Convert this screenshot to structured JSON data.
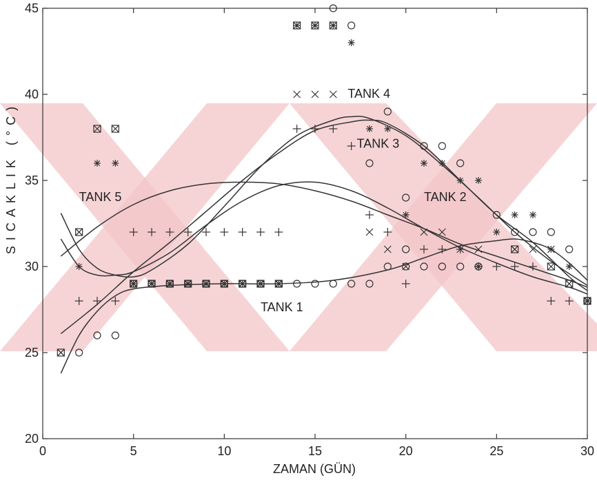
{
  "chart_data": {
    "type": "scatter",
    "xlabel": "ZAMAN (GÜN)",
    "ylabel": "SICAKLIK (°C)",
    "xlim": [
      0,
      30
    ],
    "ylim": [
      20,
      45
    ],
    "xticks": [
      0,
      5,
      10,
      15,
      20,
      25,
      30
    ],
    "yticks": [
      20,
      25,
      30,
      35,
      40,
      45
    ],
    "grid": false,
    "watermark_color": "#f3c6c8",
    "annotations": [
      {
        "text": "TANK 1",
        "x": 12,
        "y": 27.4
      },
      {
        "text": "TANK 2",
        "x": 21,
        "y": 33.8
      },
      {
        "text": "TANK 3",
        "x": 17.3,
        "y": 36.9
      },
      {
        "text": "TANK 4",
        "x": 16.8,
        "y": 39.8
      },
      {
        "text": "TANK 5",
        "x": 2,
        "y": 33.8
      }
    ],
    "series": [
      {
        "name": "TANK 1",
        "marker": "circle",
        "points": [
          [
            2,
            25
          ],
          [
            3,
            26
          ],
          [
            4,
            26
          ],
          [
            5,
            29
          ],
          [
            6,
            29
          ],
          [
            7,
            29
          ],
          [
            8,
            29
          ],
          [
            9,
            29
          ],
          [
            10,
            29
          ],
          [
            11,
            29
          ],
          [
            12,
            29
          ],
          [
            13,
            29
          ],
          [
            14,
            29
          ],
          [
            15,
            29
          ],
          [
            16,
            29
          ],
          [
            17,
            29
          ],
          [
            18,
            29
          ],
          [
            19,
            30
          ],
          [
            20,
            30
          ],
          [
            21,
            30
          ],
          [
            22,
            30
          ],
          [
            23,
            30
          ],
          [
            24,
            30
          ],
          [
            25,
            33
          ],
          [
            26,
            32
          ],
          [
            27,
            32
          ],
          [
            28,
            32
          ],
          [
            29,
            31
          ],
          [
            20,
            31
          ],
          [
            20,
            34
          ],
          [
            18,
            36
          ],
          [
            19,
            39
          ],
          [
            21,
            37
          ],
          [
            22,
            37
          ],
          [
            23,
            36
          ],
          [
            16,
            45
          ],
          [
            17,
            44
          ],
          [
            30,
            28
          ]
        ],
        "curve": [
          [
            1,
            23.8
          ],
          [
            2,
            26.0
          ],
          [
            3,
            27.4
          ],
          [
            4,
            28.3
          ],
          [
            5,
            28.7
          ],
          [
            7,
            28.9
          ],
          [
            10,
            29.0
          ],
          [
            13,
            29.0
          ],
          [
            16,
            29.2
          ],
          [
            19,
            29.8
          ],
          [
            21,
            30.5
          ],
          [
            23,
            31.2
          ],
          [
            25,
            31.5
          ],
          [
            26,
            31.6
          ],
          [
            27,
            31.4
          ],
          [
            28,
            31.0
          ],
          [
            29,
            30.2
          ],
          [
            30,
            29.2
          ]
        ]
      },
      {
        "name": "TANK 2",
        "marker": "plus",
        "points": [
          [
            2,
            28
          ],
          [
            3,
            28
          ],
          [
            4,
            28
          ],
          [
            5,
            32
          ],
          [
            6,
            32
          ],
          [
            7,
            32
          ],
          [
            8,
            32
          ],
          [
            9,
            32
          ],
          [
            10,
            32
          ],
          [
            11,
            32
          ],
          [
            12,
            32
          ],
          [
            13,
            32
          ],
          [
            14,
            38
          ],
          [
            15,
            38
          ],
          [
            16,
            38
          ],
          [
            17,
            37
          ],
          [
            18,
            33
          ],
          [
            19,
            32
          ],
          [
            20,
            29
          ],
          [
            21,
            31
          ],
          [
            22,
            31
          ],
          [
            23,
            31
          ],
          [
            24,
            30
          ],
          [
            25,
            30
          ],
          [
            26,
            30
          ],
          [
            27,
            30
          ],
          [
            28,
            28
          ],
          [
            29,
            28
          ],
          [
            30,
            28
          ]
        ],
        "curve": [
          [
            1,
            30.6
          ],
          [
            3,
            32.3
          ],
          [
            5,
            33.6
          ],
          [
            7,
            34.4
          ],
          [
            9,
            34.8
          ],
          [
            11,
            34.9
          ],
          [
            13,
            34.8
          ],
          [
            15,
            34.4
          ],
          [
            17,
            33.8
          ],
          [
            19,
            33.0
          ],
          [
            21,
            32.2
          ],
          [
            23,
            31.3
          ],
          [
            25,
            30.6
          ],
          [
            27,
            29.9
          ],
          [
            29,
            29.2
          ],
          [
            30,
            28.8
          ]
        ]
      },
      {
        "name": "TANK 3",
        "marker": "asterisk",
        "points": [
          [
            2,
            30
          ],
          [
            3,
            36
          ],
          [
            4,
            36
          ],
          [
            5,
            29
          ],
          [
            6,
            29
          ],
          [
            7,
            29
          ],
          [
            8,
            29
          ],
          [
            9,
            29
          ],
          [
            10,
            29
          ],
          [
            11,
            29
          ],
          [
            12,
            29
          ],
          [
            13,
            29
          ],
          [
            14,
            44
          ],
          [
            15,
            44
          ],
          [
            16,
            44
          ],
          [
            17,
            43
          ],
          [
            18,
            38
          ],
          [
            19,
            38
          ],
          [
            20,
            33
          ],
          [
            21,
            36
          ],
          [
            22,
            36
          ],
          [
            23,
            35
          ],
          [
            24,
            35
          ],
          [
            25,
            32
          ],
          [
            26,
            33
          ],
          [
            27,
            33
          ],
          [
            28,
            31
          ],
          [
            29,
            30
          ],
          [
            24,
            30
          ],
          [
            30,
            28
          ]
        ],
        "curve": [
          [
            1,
            26.1
          ],
          [
            3,
            27.8
          ],
          [
            5,
            29.7
          ],
          [
            7,
            31.4
          ],
          [
            9,
            33.2
          ],
          [
            11,
            35.0
          ],
          [
            13,
            36.6
          ],
          [
            15,
            37.9
          ],
          [
            17,
            38.4
          ],
          [
            18,
            38.5
          ],
          [
            19,
            38.3
          ],
          [
            21,
            37.0
          ],
          [
            23,
            35.0
          ],
          [
            25,
            33.0
          ],
          [
            27,
            31.4
          ],
          [
            29,
            29.4
          ],
          [
            30,
            28.6
          ]
        ]
      },
      {
        "name": "TANK 4",
        "marker": "cross",
        "points": [
          [
            1,
            25
          ],
          [
            2,
            32
          ],
          [
            5,
            29
          ],
          [
            6,
            29
          ],
          [
            7,
            29
          ],
          [
            8,
            29
          ],
          [
            9,
            29
          ],
          [
            10,
            29
          ],
          [
            11,
            29
          ],
          [
            12,
            29
          ],
          [
            13,
            29
          ],
          [
            14,
            40
          ],
          [
            15,
            40
          ],
          [
            16,
            40
          ],
          [
            18,
            32
          ],
          [
            19,
            31
          ],
          [
            20,
            30
          ],
          [
            21,
            32
          ],
          [
            22,
            32
          ],
          [
            23,
            31
          ],
          [
            24,
            31
          ],
          [
            26,
            31
          ],
          [
            27,
            31
          ],
          [
            28,
            31
          ],
          [
            29,
            29
          ],
          [
            30,
            28
          ]
        ],
        "curve": [
          [
            1,
            33.1
          ],
          [
            2,
            31.0
          ],
          [
            3,
            29.9
          ],
          [
            4,
            29.5
          ],
          [
            5,
            29.4
          ],
          [
            6,
            29.8
          ],
          [
            8,
            31.3
          ],
          [
            10,
            33.5
          ],
          [
            12,
            35.8
          ],
          [
            14,
            37.6
          ],
          [
            16,
            38.5
          ],
          [
            17,
            38.7
          ],
          [
            18,
            38.6
          ],
          [
            20,
            37.6
          ],
          [
            22,
            35.9
          ],
          [
            24,
            34.0
          ],
          [
            26,
            32.0
          ],
          [
            28,
            30.3
          ],
          [
            30,
            28.9
          ]
        ]
      },
      {
        "name": "TANK 5",
        "marker": "boxcross",
        "points": [
          [
            1,
            25
          ],
          [
            2,
            32
          ],
          [
            3,
            38
          ],
          [
            4,
            38
          ],
          [
            5,
            29
          ],
          [
            6,
            29
          ],
          [
            7,
            29
          ],
          [
            8,
            29
          ],
          [
            9,
            29
          ],
          [
            10,
            29
          ],
          [
            11,
            29
          ],
          [
            12,
            29
          ],
          [
            13,
            29
          ],
          [
            14,
            44
          ],
          [
            15,
            44
          ],
          [
            16,
            44
          ],
          [
            26,
            31
          ],
          [
            28,
            30
          ],
          [
            29,
            29
          ],
          [
            30,
            28
          ]
        ],
        "curve": [
          [
            1,
            31.6
          ],
          [
            2,
            30.0
          ],
          [
            3,
            29.5
          ],
          [
            4,
            29.5
          ],
          [
            5,
            29.7
          ],
          [
            7,
            30.8
          ],
          [
            9,
            32.4
          ],
          [
            11,
            33.8
          ],
          [
            13,
            34.7
          ],
          [
            15,
            34.9
          ],
          [
            17,
            34.4
          ],
          [
            19,
            33.4
          ],
          [
            21,
            32.2
          ],
          [
            23,
            31.1
          ],
          [
            25,
            30.2
          ],
          [
            27,
            29.4
          ],
          [
            29,
            28.8
          ],
          [
            30,
            28.4
          ]
        ]
      }
    ]
  }
}
